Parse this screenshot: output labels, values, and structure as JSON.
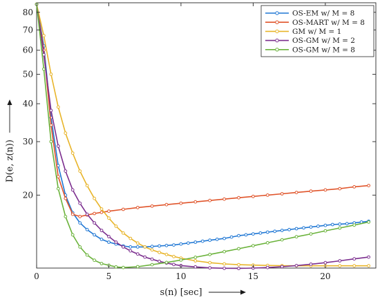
{
  "chart_data": {
    "type": "line",
    "title": "",
    "xlabel": "s(n) [sec]",
    "ylabel": "D(e, z(n))",
    "xlim": [
      0,
      23.5
    ],
    "ylim": [
      11.5,
      86
    ],
    "yscale": "log",
    "grid": false,
    "legend_position": "top-right",
    "xticks": [
      0,
      5,
      10,
      15,
      20
    ],
    "yticks": [
      20,
      30,
      40,
      50,
      60,
      70,
      80
    ],
    "series": [
      {
        "name": "OS-EM w/ M = 8",
        "color": "#1f77d4",
        "marker": "circle",
        "x": [
          0,
          0.5,
          1,
          1.5,
          2,
          2.5,
          3,
          3.5,
          4,
          4.5,
          5,
          5.5,
          6,
          6.5,
          7,
          7.5,
          8,
          8.5,
          9,
          9.5,
          10,
          10.5,
          11,
          11.5,
          12,
          12.5,
          13,
          13.5,
          14,
          14.5,
          15,
          15.5,
          16,
          16.5,
          17,
          17.5,
          18,
          18.5,
          19,
          19.5,
          20,
          20.5,
          21,
          21.5,
          22,
          22.5,
          23
        ],
        "y": [
          85,
          62,
          36,
          25,
          20,
          17.5,
          16.2,
          15.4,
          14.8,
          14.3,
          14.0,
          13.8,
          13.6,
          13.5,
          13.5,
          13.5,
          13.55,
          13.6,
          13.65,
          13.7,
          13.8,
          13.9,
          14.0,
          14.1,
          14.2,
          14.3,
          14.4,
          14.55,
          14.7,
          14.8,
          14.9,
          15.0,
          15.1,
          15.2,
          15.3,
          15.4,
          15.5,
          15.6,
          15.7,
          15.8,
          15.9,
          16.0,
          16.05,
          16.1,
          16.2,
          16.3,
          16.4
        ]
      },
      {
        "name": "OS-MART w/ M = 8",
        "color": "#e0542a",
        "marker": "circle",
        "x": [
          0,
          0.5,
          1,
          1.5,
          2,
          2.5,
          3,
          3.5,
          4,
          4.5,
          5,
          6,
          7,
          8,
          9,
          10,
          11,
          12,
          13,
          14,
          15,
          16,
          17,
          18,
          19,
          20,
          21,
          22,
          23
        ],
        "y": [
          85,
          60,
          34,
          23,
          19.5,
          17.3,
          17.0,
          17.2,
          17.4,
          17.55,
          17.7,
          17.95,
          18.2,
          18.4,
          18.6,
          18.8,
          19.0,
          19.2,
          19.4,
          19.6,
          19.8,
          20.0,
          20.2,
          20.4,
          20.6,
          20.8,
          21.0,
          21.3,
          21.5
        ]
      },
      {
        "name": "GM w/ M = 1",
        "color": "#e8b429",
        "marker": "circle",
        "x": [
          0,
          0.5,
          1,
          1.5,
          2,
          2.5,
          3,
          3.5,
          4,
          4.5,
          5,
          5.5,
          6,
          6.5,
          7,
          7.5,
          8,
          8.5,
          9,
          9.5,
          10,
          11,
          12,
          13,
          14,
          15,
          16,
          17,
          18,
          19,
          20,
          21,
          22,
          23
        ],
        "y": [
          85,
          67,
          50,
          39,
          32,
          27.5,
          24,
          21.5,
          19.5,
          18,
          16.8,
          15.8,
          15.0,
          14.4,
          13.9,
          13.5,
          13.2,
          12.95,
          12.75,
          12.55,
          12.4,
          12.15,
          11.98,
          11.87,
          11.8,
          11.76,
          11.73,
          11.71,
          11.7,
          11.7,
          11.7,
          11.7,
          11.7,
          11.7
        ]
      },
      {
        "name": "OS-GM w/ M = 2",
        "color": "#7b2d8e",
        "marker": "circle",
        "x": [
          0,
          0.5,
          1,
          1.5,
          2,
          2.5,
          3,
          3.5,
          4,
          4.5,
          5,
          5.5,
          6,
          6.5,
          7,
          7.5,
          8,
          8.5,
          9,
          9.5,
          10,
          11,
          12,
          13,
          14,
          15,
          16,
          17,
          18,
          19,
          20,
          21,
          22,
          23
        ],
        "y": [
          85,
          58,
          38,
          29,
          24,
          20.8,
          18.8,
          17.3,
          16.2,
          15.3,
          14.6,
          14.0,
          13.5,
          13.1,
          12.8,
          12.5,
          12.3,
          12.1,
          11.95,
          11.82,
          11.72,
          11.6,
          11.52,
          11.48,
          11.47,
          11.5,
          11.55,
          11.62,
          11.72,
          11.84,
          11.98,
          12.15,
          12.33,
          12.5
        ]
      },
      {
        "name": "OS-GM w/ M = 8",
        "color": "#6ab23a",
        "marker": "circle",
        "x": [
          0,
          0.5,
          1,
          1.5,
          2,
          2.5,
          3,
          3.5,
          4,
          4.5,
          5,
          5.5,
          6,
          7,
          8,
          9,
          10,
          11,
          12,
          13,
          14,
          15,
          16,
          17,
          18,
          19,
          20,
          21,
          22,
          23
        ],
        "y": [
          85,
          52,
          30,
          21,
          17,
          14.8,
          13.5,
          12.7,
          12.2,
          11.9,
          11.75,
          11.6,
          11.55,
          11.62,
          11.8,
          12.0,
          12.22,
          12.48,
          12.75,
          13.03,
          13.32,
          13.62,
          13.93,
          14.25,
          14.58,
          14.9,
          15.25,
          15.58,
          15.93,
          16.3
        ]
      }
    ]
  }
}
